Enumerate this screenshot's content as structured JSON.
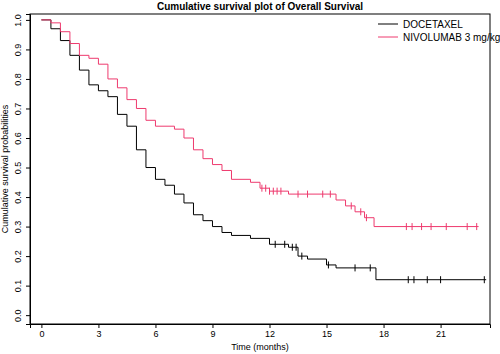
{
  "chart_data": {
    "type": "step",
    "title": "Cumulative survival plot of Overall Survival",
    "x_label": "Time (months)",
    "y_label": "Cumulative survival probabilities",
    "xlim": [
      -0.6,
      23.6
    ],
    "ylim": [
      -0.03,
      1.02
    ],
    "xticks": [
      0,
      3,
      6,
      9,
      12,
      15,
      18,
      21
    ],
    "yticks": [
      {
        "value": 0,
        "label": "0.0"
      },
      0.1,
      0.2,
      0.3,
      0.4,
      0.5,
      0.6,
      0.7,
      0.8,
      0.9,
      {
        "value": 1,
        "label": "1.0"
      }
    ],
    "grid": false,
    "legend": "top-right",
    "series": [
      {
        "name": "DOCETAXEL",
        "color": "#000000",
        "x": [
          0,
          0.5,
          1,
          1.5,
          2,
          2.5,
          3,
          3.5,
          4,
          4.5,
          5,
          5.5,
          6,
          6.5,
          7,
          7.5,
          8,
          8.5,
          9,
          9.5,
          10,
          11,
          12,
          13,
          13.5,
          14,
          15,
          15.5,
          17.6,
          23.4
        ],
        "values": [
          1.0,
          0.97,
          0.93,
          0.88,
          0.83,
          0.78,
          0.76,
          0.74,
          0.68,
          0.64,
          0.56,
          0.5,
          0.46,
          0.44,
          0.41,
          0.38,
          0.34,
          0.32,
          0.3,
          0.28,
          0.27,
          0.26,
          0.24,
          0.23,
          0.2,
          0.19,
          0.17,
          0.16,
          0.12,
          0.12
        ],
        "censor_x": [
          12.3,
          12.8,
          13.2,
          13.4,
          13.7,
          15.1,
          16.5,
          17.3,
          19.3,
          19.6,
          20.3,
          21.0,
          23.3
        ],
        "censor_values": [
          0.24,
          0.24,
          0.23,
          0.23,
          0.2,
          0.17,
          0.16,
          0.16,
          0.12,
          0.12,
          0.12,
          0.12,
          0.12
        ]
      },
      {
        "name": "NIVOLUMAB 3 mg/kg",
        "color": "#ee3a6e",
        "x": [
          0,
          0.5,
          1,
          1.5,
          2,
          2.5,
          3,
          3.5,
          4,
          4.5,
          5,
          5.5,
          6,
          7,
          7.5,
          8,
          8.5,
          9,
          9.5,
          10,
          11,
          11.5,
          12,
          13,
          15.5,
          16,
          16.5,
          17,
          17.5,
          23
        ],
        "values": [
          1.0,
          0.99,
          0.96,
          0.92,
          0.88,
          0.87,
          0.85,
          0.8,
          0.77,
          0.73,
          0.7,
          0.66,
          0.64,
          0.63,
          0.6,
          0.56,
          0.53,
          0.51,
          0.49,
          0.46,
          0.45,
          0.43,
          0.42,
          0.41,
          0.39,
          0.37,
          0.35,
          0.33,
          0.3,
          0.3
        ],
        "censor_x": [
          11.6,
          11.8,
          12.0,
          12.2,
          12.4,
          12.6,
          13.5,
          14.0,
          14.8,
          15.2,
          16.3,
          16.8,
          17.1,
          19.2,
          19.5,
          20.0,
          20.5,
          21.3,
          22.4,
          22.9
        ],
        "censor_values": [
          0.43,
          0.43,
          0.42,
          0.42,
          0.42,
          0.42,
          0.41,
          0.41,
          0.41,
          0.41,
          0.37,
          0.35,
          0.33,
          0.3,
          0.3,
          0.3,
          0.3,
          0.3,
          0.3,
          0.3
        ]
      }
    ]
  }
}
